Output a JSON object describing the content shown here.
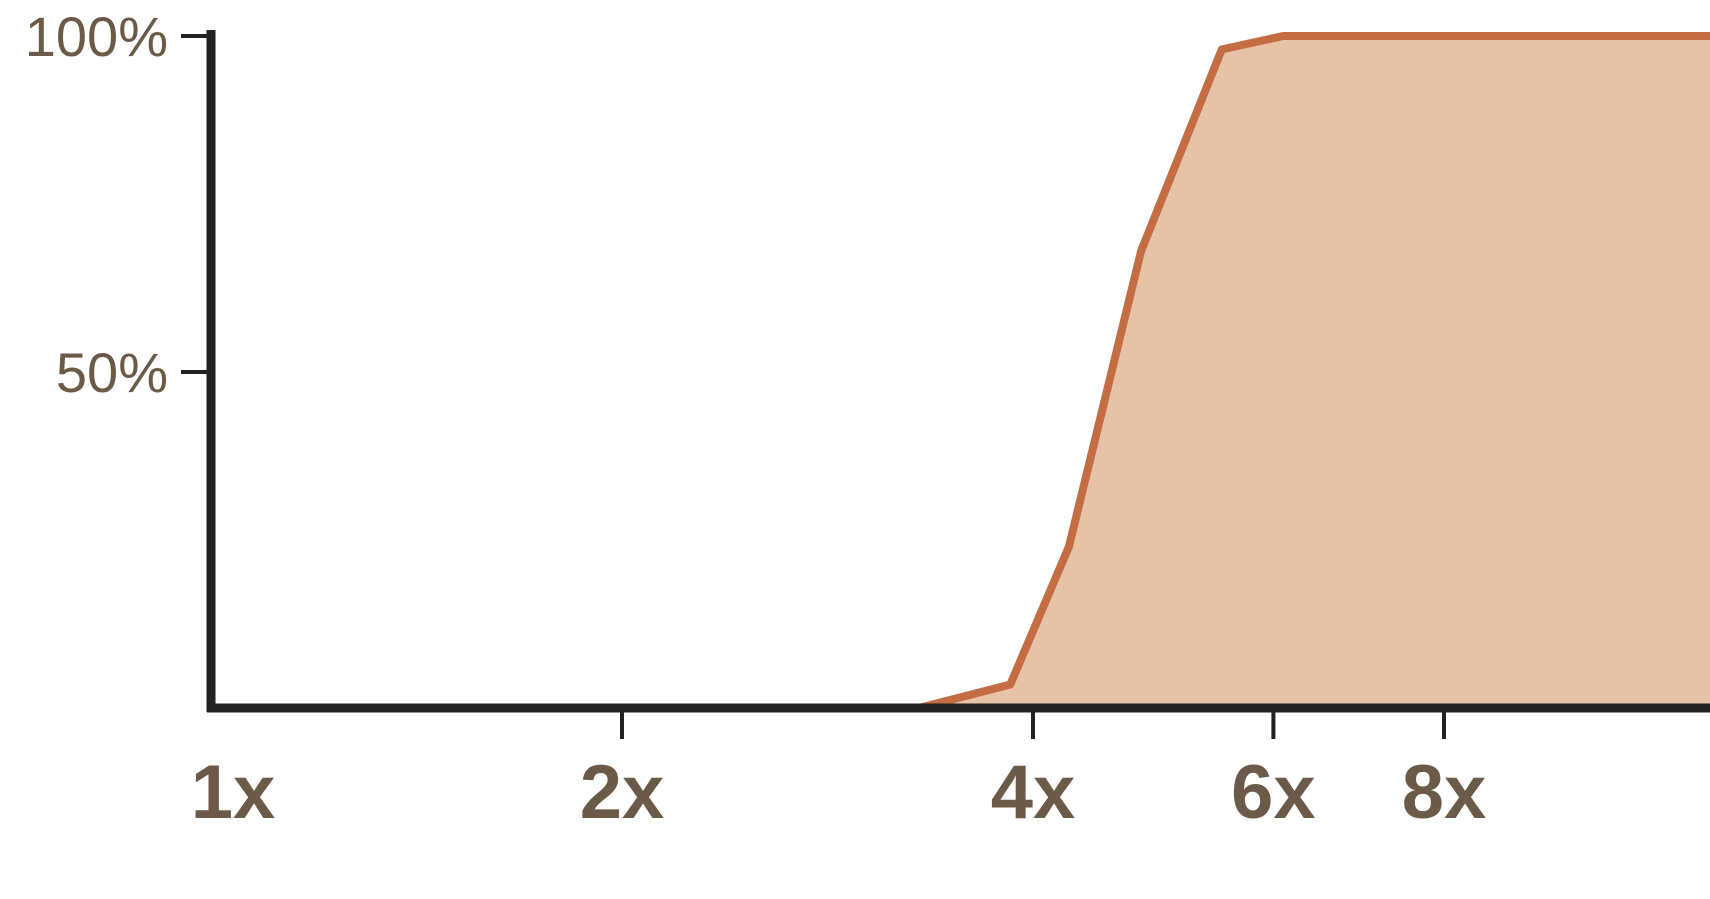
{
  "chart_data": {
    "type": "area",
    "x_scale": "log2",
    "x_tick_values": [
      1,
      2,
      4,
      6,
      8
    ],
    "x_ticks": [
      "1x",
      "2x",
      "4x",
      "6x",
      "8x"
    ],
    "y_tick_values": [
      0.5,
      1.0
    ],
    "y_ticks": [
      "50%",
      "100%"
    ],
    "xlim": [
      1,
      15
    ],
    "ylim": [
      0,
      1.02
    ],
    "title": "",
    "xlabel": "",
    "ylabel": "",
    "grid": false,
    "series": [
      {
        "x": [
          1,
          3.3,
          3.85,
          4.25,
          4.8,
          5.5,
          6.1,
          15
        ],
        "values": [
          0,
          0,
          0.035,
          0.24,
          0.68,
          0.98,
          1.0,
          1.0
        ]
      }
    ],
    "colors": {
      "line": "#c46d43",
      "fill": "#e6c3a7",
      "axis": "#222222",
      "tick_label": "#6b5a48"
    }
  }
}
